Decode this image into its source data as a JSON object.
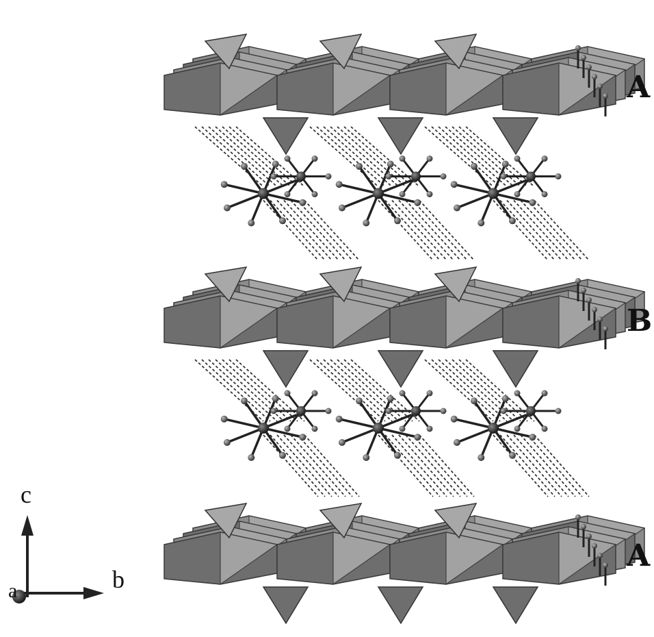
{
  "layers": [
    {
      "label": "A"
    },
    {
      "label": "B"
    },
    {
      "label": "A"
    }
  ],
  "axes": {
    "c": "c",
    "b": "b",
    "a": "a"
  },
  "colors": {
    "octahedron_dark": "#6e6e6e",
    "octahedron_mid": "#8c8c8c",
    "octahedron_light": "#a8a8a8",
    "bond": "#222222",
    "hbond": "#333333",
    "atom": "#555555",
    "background": "#ffffff"
  }
}
